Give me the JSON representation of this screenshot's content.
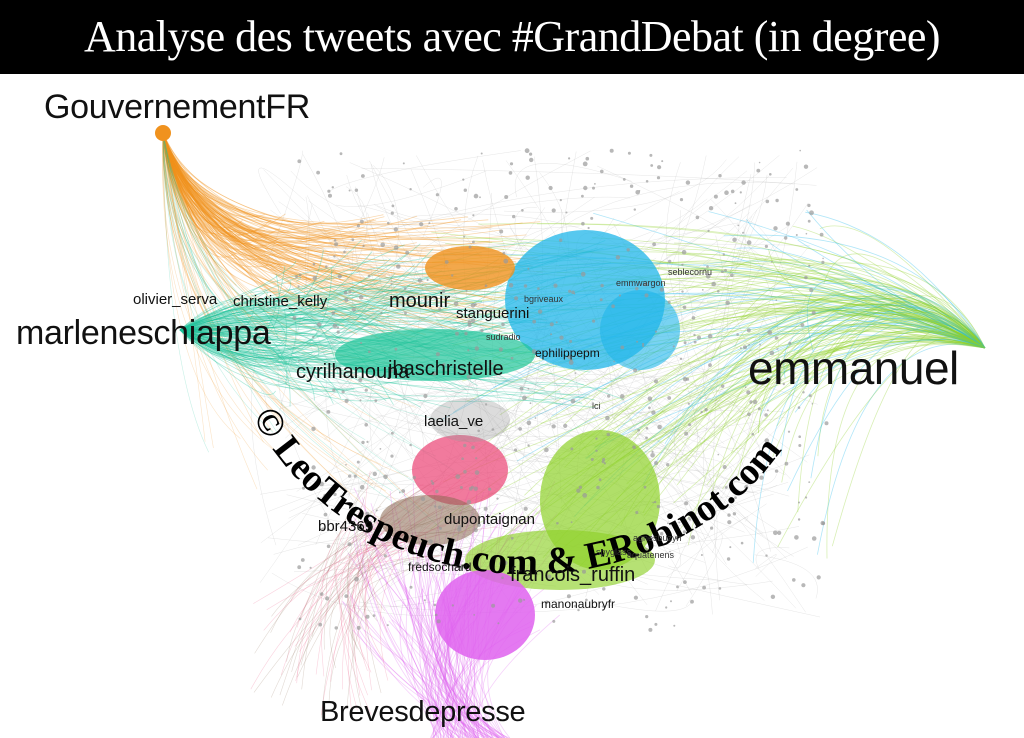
{
  "title": "Analyse des tweets avec #GrandDebat (in degree)",
  "watermark": "© LeoTrespeuch.com & ERobinot.com",
  "colors": {
    "orange": "#f0921e",
    "cyan": "#1fb6ea",
    "teal": "#1fc49a",
    "lime": "#8fd12a",
    "pink": "#ec4d7c",
    "magenta": "#df62ef",
    "grey": "#9a9a9a",
    "brown": "#8a6a52"
  },
  "nodes": {
    "gouvernementfr": "GouvernementFR",
    "marleneschiappa": "marleneschiappa",
    "emmanuel": "emmanuel",
    "brevesdepresse": "Brevesdepresse",
    "francois_ruffin": "francois_ruffin",
    "cyrilhanouna": "cyrilhanouna",
    "jbaschristelle": "jbaschristelle",
    "christine_kelly": "christine_kelly",
    "mounir": "mounir",
    "olivier_serva": "olivier_serva",
    "stanguerini": "stanguerini",
    "laelia_ve": "laelia_ve",
    "bbr4369": "bbr4369",
    "dupontaignan": "dupontaignan",
    "ephilippepm": "ephilippepm",
    "manonaubryfr": "manonaubryfr",
    "bgriveaux": "bgriveaux",
    "sudradio": "sudradio",
    "emmwargon": "emmwargon",
    "fredsochard": "fredsochard",
    "lci": "lci",
    "agnesbuzyn": "agnesbuzyn",
    "aquatenens": "aquatenens",
    "seblecornu": "seblecornu",
    "spyglass": "spyglass"
  }
}
